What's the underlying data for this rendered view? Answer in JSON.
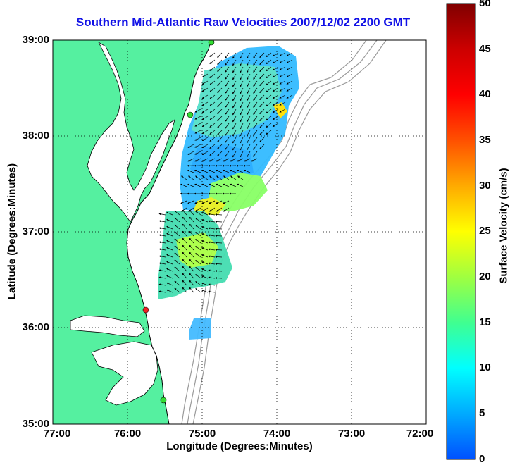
{
  "title": "Southern Mid-Atlantic Raw Velocities 2007/12/02 2200 GMT",
  "xlabel": "Longitude (Degrees:Minutes)",
  "ylabel": "Latitude (Degrees:Minutes)",
  "x_ticks": [
    "77:00",
    "76:00",
    "75:00",
    "74:00",
    "73:00",
    "72:00"
  ],
  "y_ticks": [
    "39:00",
    "38:00",
    "37:00",
    "36:00",
    "35:00"
  ],
  "colorbar": {
    "label": "Surface Velocity (cm/s)",
    "ticks": [
      "0",
      "5",
      "10",
      "15",
      "20",
      "25",
      "30",
      "35",
      "40",
      "45",
      "50"
    ],
    "range": [
      0,
      50
    ],
    "colors": [
      "#0050ff",
      "#00aaff",
      "#00ffff",
      "#40ff90",
      "#a0ff40",
      "#ffff00",
      "#ffaa00",
      "#ff5000",
      "#ff0000",
      "#aa0000",
      "#800000"
    ]
  },
  "colors": {
    "land": "#55f0a0",
    "title": "#1010e6",
    "bathymetry": "#9a9a9a",
    "vectors": "#000000"
  },
  "map": {
    "lon_range": [
      -77,
      -72
    ],
    "lat_range": [
      35,
      39
    ],
    "grid": true,
    "stations": [
      {
        "name": "station-north",
        "color": "#33dd33"
      },
      {
        "name": "station-delaware",
        "color": "#33dd33"
      },
      {
        "name": "station-duck",
        "color": "#ee2222"
      },
      {
        "name": "station-hatteras",
        "color": "#33dd33"
      }
    ]
  }
}
